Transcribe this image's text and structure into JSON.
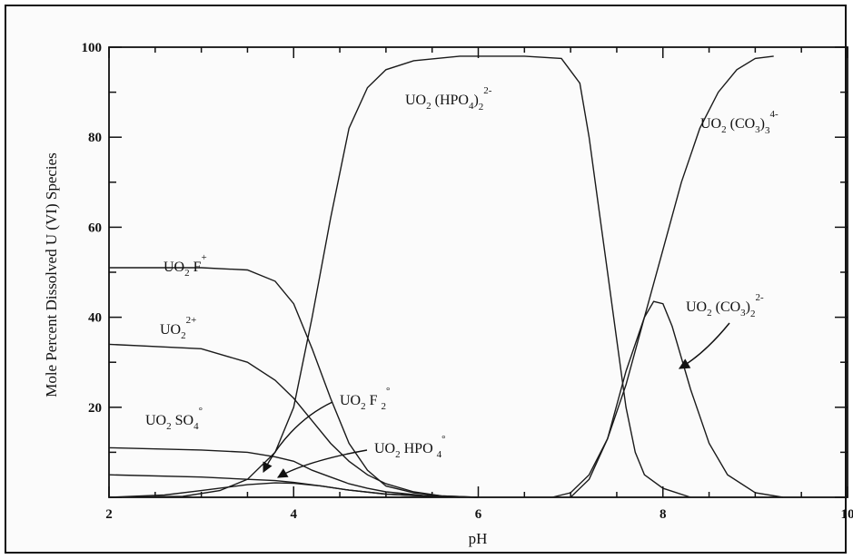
{
  "chart_data": {
    "type": "line",
    "title": "",
    "xlabel": "pH",
    "ylabel": "Mole Percent Dissolved U (VI) Species",
    "xlim": [
      2,
      10
    ],
    "ylim": [
      0,
      100
    ],
    "x_ticks": [
      "2",
      "4",
      "6",
      "8",
      "10"
    ],
    "y_ticks": [
      "20",
      "40",
      "60",
      "80",
      "100"
    ],
    "grid": false,
    "series": [
      {
        "name": "UO2 F+",
        "label": {
          "base": "UO",
          "s1": "2",
          "rest": " F",
          "sup": "+"
        },
        "points": [
          [
            2.0,
            51
          ],
          [
            3.0,
            51
          ],
          [
            3.5,
            50.5
          ],
          [
            3.8,
            48
          ],
          [
            4.0,
            43
          ],
          [
            4.2,
            33
          ],
          [
            4.4,
            22
          ],
          [
            4.6,
            12
          ],
          [
            4.8,
            6
          ],
          [
            5.0,
            2.5
          ],
          [
            5.3,
            1
          ],
          [
            5.6,
            0.3
          ],
          [
            6.0,
            0
          ]
        ]
      },
      {
        "name": "UO2 2+",
        "label": {
          "base": "UO",
          "s1": "2",
          "sup": "2+"
        },
        "points": [
          [
            2.0,
            34
          ],
          [
            3.0,
            33
          ],
          [
            3.5,
            30
          ],
          [
            3.8,
            26
          ],
          [
            4.0,
            22
          ],
          [
            4.2,
            17
          ],
          [
            4.4,
            12
          ],
          [
            4.6,
            8
          ],
          [
            4.8,
            5
          ],
          [
            5.0,
            3
          ],
          [
            5.3,
            1.2
          ],
          [
            5.6,
            0.3
          ],
          [
            6.0,
            0
          ]
        ]
      },
      {
        "name": "UO2 SO4°",
        "label": {
          "base": "UO",
          "s1": "2",
          "rest": " SO",
          "s2": "4",
          "sup": "°"
        },
        "points": [
          [
            2.0,
            11
          ],
          [
            3.0,
            10.5
          ],
          [
            3.5,
            10
          ],
          [
            3.8,
            9
          ],
          [
            4.0,
            8
          ],
          [
            4.2,
            6
          ],
          [
            4.4,
            4.5
          ],
          [
            4.6,
            3
          ],
          [
            4.8,
            2
          ],
          [
            5.0,
            1.2
          ],
          [
            5.4,
            0.4
          ],
          [
            5.8,
            0
          ]
        ]
      },
      {
        "name": "UO2 F2°",
        "label": {
          "base": "UO",
          "s1": "2",
          "rest": " F ",
          "s2": "2",
          "sup": "°"
        },
        "points": [
          [
            2.0,
            5
          ],
          [
            3.0,
            4.5
          ],
          [
            3.5,
            4
          ],
          [
            3.8,
            3.7
          ],
          [
            4.0,
            3.3
          ],
          [
            4.3,
            2.5
          ],
          [
            4.6,
            1.6
          ],
          [
            5.0,
            0.7
          ],
          [
            5.5,
            0.2
          ],
          [
            6.0,
            0
          ]
        ]
      },
      {
        "name": "UO2 HPO4°",
        "label": {
          "base": "UO",
          "s1": "2",
          "rest": " HPO ",
          "s2": "4",
          "sup": "°"
        },
        "points": [
          [
            2.0,
            0
          ],
          [
            2.6,
            0.5
          ],
          [
            3.0,
            1.5
          ],
          [
            3.5,
            2.8
          ],
          [
            3.8,
            3.2
          ],
          [
            4.0,
            3.1
          ],
          [
            4.3,
            2.5
          ],
          [
            4.6,
            1.6
          ],
          [
            5.0,
            0.7
          ],
          [
            5.5,
            0.2
          ],
          [
            6.0,
            0
          ]
        ]
      },
      {
        "name": "UO2 (HPO4)2 2-",
        "label": {
          "base": "UO",
          "s1": "2",
          "rest": " (HPO",
          "s2": "4",
          "rest2": ")",
          "s3": "2",
          "sup": "2-"
        },
        "points": [
          [
            2.0,
            0
          ],
          [
            2.8,
            0.2
          ],
          [
            3.2,
            1.5
          ],
          [
            3.5,
            4
          ],
          [
            3.8,
            10
          ],
          [
            4.0,
            20
          ],
          [
            4.2,
            40
          ],
          [
            4.4,
            62
          ],
          [
            4.6,
            82
          ],
          [
            4.8,
            91
          ],
          [
            5.0,
            95
          ],
          [
            5.3,
            97
          ],
          [
            5.8,
            98
          ],
          [
            6.5,
            98
          ],
          [
            6.9,
            97.5
          ],
          [
            7.1,
            92
          ],
          [
            7.2,
            80
          ],
          [
            7.3,
            65
          ],
          [
            7.4,
            50
          ],
          [
            7.5,
            35
          ],
          [
            7.6,
            20
          ],
          [
            7.7,
            10
          ],
          [
            7.8,
            5
          ],
          [
            8.0,
            2
          ],
          [
            8.3,
            0
          ]
        ]
      },
      {
        "name": "UO2 (CO3)3 4-",
        "label": {
          "base": "UO",
          "s1": "2",
          "rest": " (CO",
          "s2": "3",
          "rest2": ")",
          "s3": "3",
          "sup": "4-"
        },
        "points": [
          [
            6.8,
            0
          ],
          [
            7.0,
            1
          ],
          [
            7.2,
            5
          ],
          [
            7.4,
            13
          ],
          [
            7.6,
            25
          ],
          [
            7.8,
            40
          ],
          [
            8.0,
            55
          ],
          [
            8.2,
            70
          ],
          [
            8.4,
            82
          ],
          [
            8.6,
            90
          ],
          [
            8.8,
            95
          ],
          [
            9.0,
            97.5
          ],
          [
            9.2,
            98
          ]
        ]
      },
      {
        "name": "UO2 (CO3)2 2-",
        "label": {
          "base": "UO",
          "s1": "2",
          "rest": " (CO",
          "s2": "3",
          "rest2": ")",
          "s3": "2",
          "sup": "2-"
        },
        "points": [
          [
            7.0,
            0
          ],
          [
            7.2,
            4
          ],
          [
            7.4,
            13
          ],
          [
            7.6,
            28
          ],
          [
            7.8,
            40
          ],
          [
            7.9,
            43.5
          ],
          [
            8.0,
            43
          ],
          [
            8.1,
            38
          ],
          [
            8.3,
            24
          ],
          [
            8.5,
            12
          ],
          [
            8.7,
            5
          ],
          [
            9.0,
            1
          ],
          [
            9.3,
            0
          ]
        ]
      }
    ]
  }
}
